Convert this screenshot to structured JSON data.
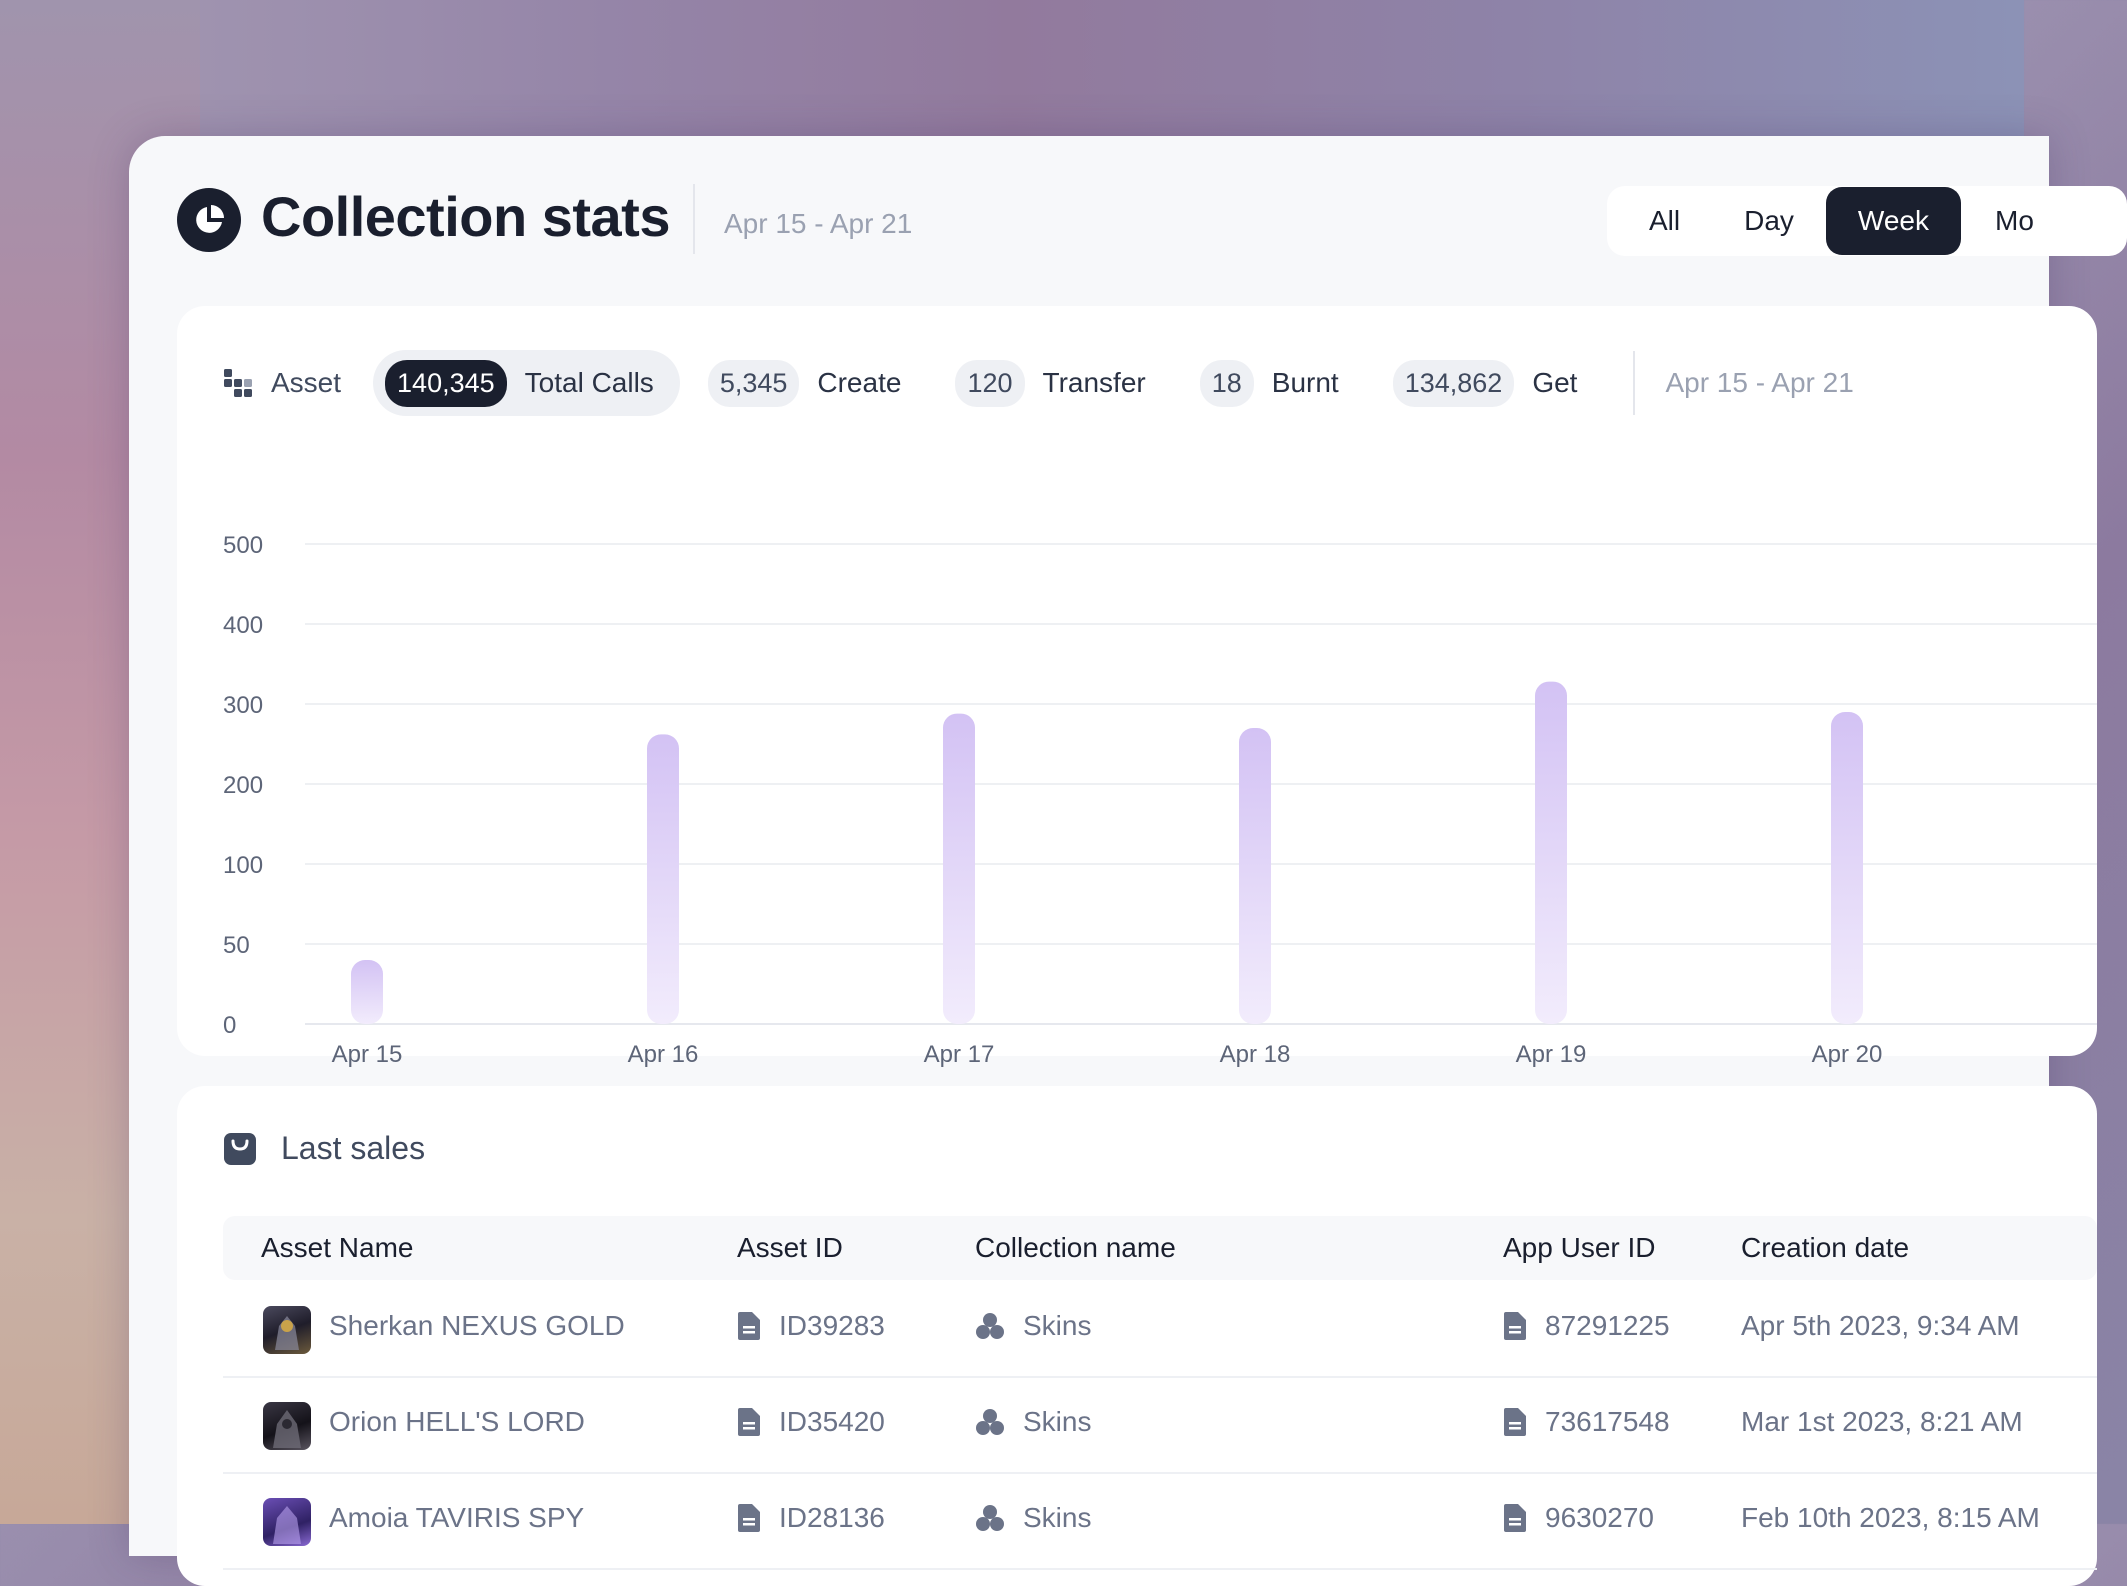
{
  "header": {
    "title": "Collection stats",
    "date_range": "Apr 15 - Apr 21",
    "range_options": [
      "All",
      "Day",
      "Week",
      "Mo"
    ],
    "active_range": "Week"
  },
  "stats": {
    "asset_label": "Asset",
    "items": [
      {
        "value": "140,345",
        "label": "Total Calls",
        "active": true
      },
      {
        "value": "5,345",
        "label": "Create"
      },
      {
        "value": "120",
        "label": "Transfer"
      },
      {
        "value": "18",
        "label": "Burnt"
      },
      {
        "value": "134,862",
        "label": "Get"
      }
    ],
    "date_range": "Apr 15 - Apr 21"
  },
  "chart_data": {
    "type": "bar",
    "title": "",
    "xlabel": "",
    "ylabel": "",
    "categories": [
      "Apr 15",
      "Apr 16",
      "Apr 17",
      "Apr 18",
      "Apr 19",
      "Apr 20"
    ],
    "values": [
      40,
      262,
      288,
      270,
      328,
      290
    ],
    "y_ticks": [
      "0",
      "50",
      "100",
      "200",
      "300",
      "400",
      "500"
    ],
    "grid": true,
    "bar_color_top": "#d3c2f4",
    "bar_color_bottom": "#f2ecfc"
  },
  "sales": {
    "title": "Last sales",
    "columns": [
      "Asset Name",
      "Asset ID",
      "Collection name",
      "App User ID",
      "Creation date"
    ],
    "rows": [
      {
        "name": "Sherkan NEXUS GOLD",
        "asset_id": "ID39283",
        "collection": "Skins",
        "user_id": "87291225",
        "date": "Apr 5th 2023, 9:34 AM"
      },
      {
        "name": "Orion HELL'S LORD",
        "asset_id": "ID35420",
        "collection": "Skins",
        "user_id": "73617548",
        "date": "Mar 1st 2023, 8:21 AM"
      },
      {
        "name": "Amoia TAVIRIS SPY",
        "asset_id": "ID28136",
        "collection": "Skins",
        "user_id": "9630270",
        "date": "Feb 10th 2023, 8:15 AM"
      }
    ]
  },
  "colors": {
    "dark": "#1a1f2e",
    "muted": "#9aa1b1",
    "bar": "#d3c2f4"
  }
}
